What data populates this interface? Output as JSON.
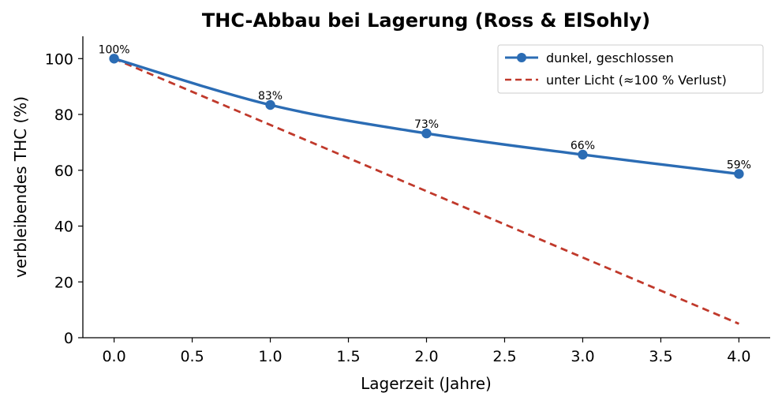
{
  "chart_data": {
    "type": "line",
    "title": "THC-Abbau bei Lagerung (Ross & ElSohly)",
    "xlabel": "Lagerzeit (Jahre)",
    "ylabel": "verbleibendes THC (%)",
    "xlim": [
      -0.2,
      4.2
    ],
    "ylim": [
      0,
      108
    ],
    "xticks": [
      0.0,
      0.5,
      1.0,
      1.5,
      2.0,
      2.5,
      3.0,
      3.5,
      4.0
    ],
    "xtick_labels": [
      "0.0",
      "0.5",
      "1.0",
      "1.5",
      "2.0",
      "2.5",
      "3.0",
      "3.5",
      "4.0"
    ],
    "yticks": [
      0,
      20,
      40,
      60,
      80,
      100
    ],
    "ytick_labels": [
      "0",
      "20",
      "40",
      "60",
      "80",
      "100"
    ],
    "grid": false,
    "legend_position": "top-right",
    "series": [
      {
        "name": "dunkel, geschlossen",
        "style": "solid-line-with-markers",
        "color": "#2b6cb4",
        "smooth": true,
        "x": [
          0,
          1,
          2,
          3,
          4
        ],
        "values": [
          100,
          83.4,
          73.2,
          65.6,
          58.7
        ],
        "data_labels": [
          "100%",
          "83%",
          "73%",
          "66%",
          "59%"
        ]
      },
      {
        "name": "unter Licht (≈100 % Verlust)",
        "style": "dashed-line",
        "color": "#c0392b",
        "smooth": false,
        "x": [
          0,
          4
        ],
        "values": [
          100,
          5
        ]
      }
    ]
  }
}
